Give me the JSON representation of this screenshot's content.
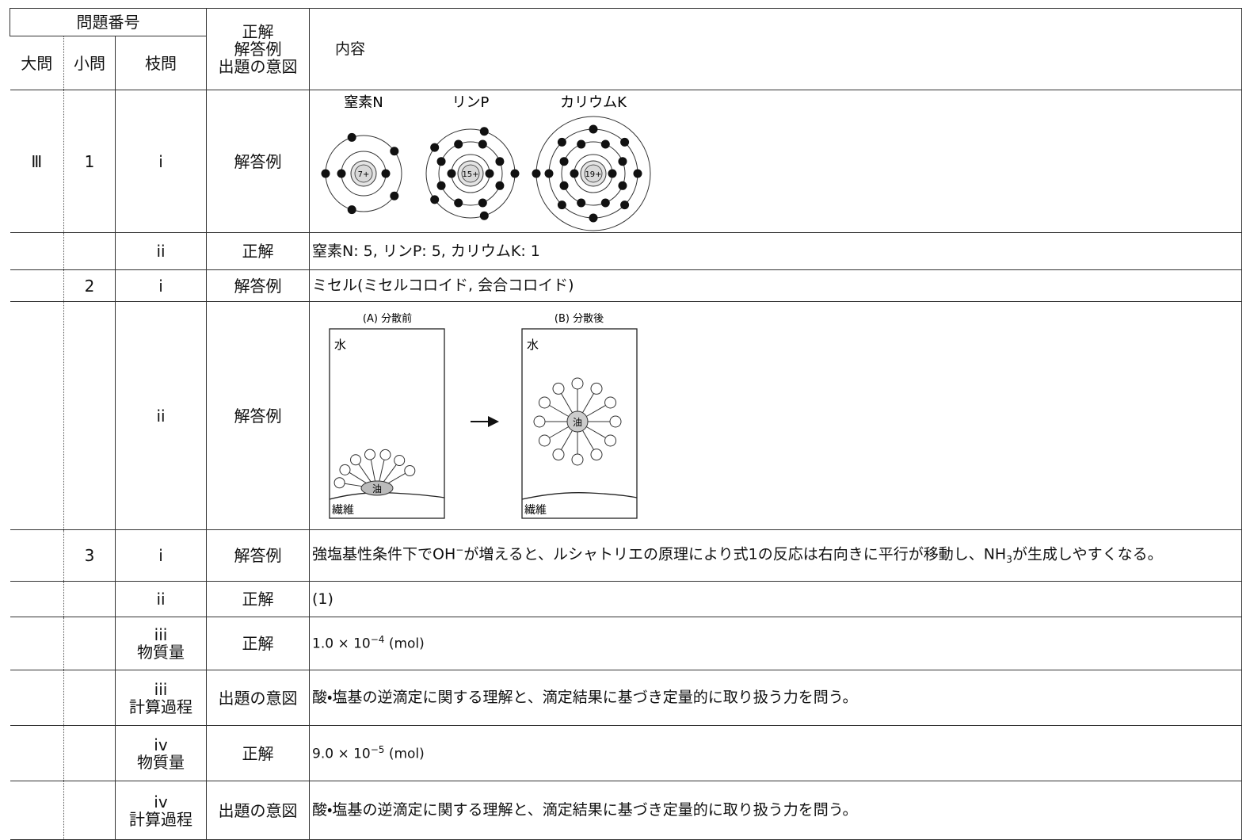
{
  "header": {
    "number": "問題番号",
    "major": "大問",
    "minor": "小問",
    "branch": "枝問",
    "kind": [
      "正解",
      "解答例",
      "出題の意図"
    ],
    "content": "内容"
  },
  "rows": [
    {
      "major": "Ⅲ",
      "minor": "1",
      "branch": [
        "i"
      ],
      "kind": "解答例",
      "content": {
        "labels": [
          "窒素N",
          "リンP",
          "カリウムK"
        ],
        "charges": [
          "7+",
          "15+",
          "19+"
        ]
      }
    },
    {
      "branch": [
        "ii"
      ],
      "kind": "正解",
      "content": "窒素N: 5, リンP: 5, カリウムK: 1"
    },
    {
      "minor": "2",
      "branch": [
        "i"
      ],
      "kind": "解答例",
      "content": "ミセル(ミセルコロイド, 会合コロイド)"
    },
    {
      "branch": [
        "ii"
      ],
      "kind": "解答例",
      "content": {
        "panels": [
          "(A) 分散前",
          "(B) 分散後"
        ],
        "water": "水",
        "oil": "油",
        "fiber": "繊維"
      }
    },
    {
      "minor": "3",
      "branch": [
        "i"
      ],
      "kind": "解答例",
      "content": [
        "強塩基性条件下でOH",
        "−",
        "が増えると、ルシャトリエの原理により式1の反応は右向きに平行が移動し、NH",
        "3",
        "が生成しやすくなる。"
      ]
    },
    {
      "branch": [
        "ii"
      ],
      "kind": "正解",
      "content": "(1)"
    },
    {
      "branch": [
        "iii",
        "物質量"
      ],
      "kind": "正解",
      "content": [
        "1.0 × 10",
        "−4",
        "(mol)"
      ]
    },
    {
      "branch": [
        "iii",
        "計算過程"
      ],
      "kind": "出題の意図",
      "content": "酸・塩基の逆滴定に関する理解と、滴定結果に基づき定量的に取り扱う力を問う。"
    },
    {
      "branch": [
        "iv",
        "物質量"
      ],
      "kind": "正解",
      "content": [
        "9.0 × 10",
        "−5",
        "(mol)"
      ]
    },
    {
      "branch": [
        "iv",
        "計算過程"
      ],
      "kind": "出題の意図",
      "content": "酸・塩基の逆滴定に関する理解と、滴定結果に基づき定量的に取り扱う力を問う。"
    }
  ]
}
